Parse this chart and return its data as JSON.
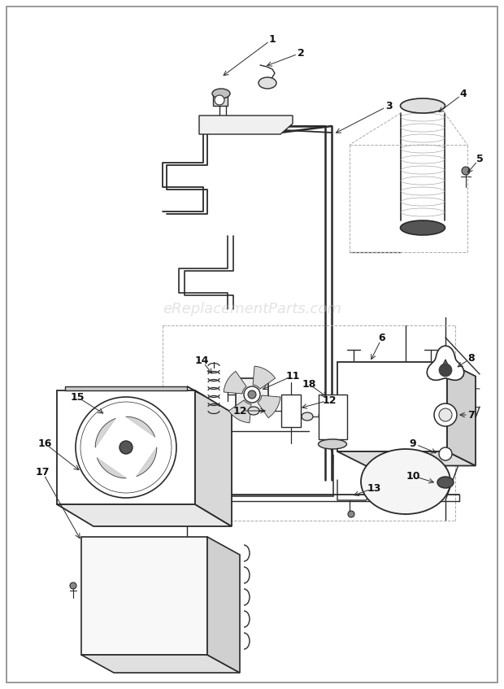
{
  "bg_color": "#ffffff",
  "line_color": "#2a2a2a",
  "label_color": "#111111",
  "watermark_text": "eReplacementParts.com",
  "watermark_color": "#c8c8c8",
  "watermark_alpha": 0.5,
  "fig_width": 6.2,
  "fig_height": 8.47,
  "dpi": 100
}
